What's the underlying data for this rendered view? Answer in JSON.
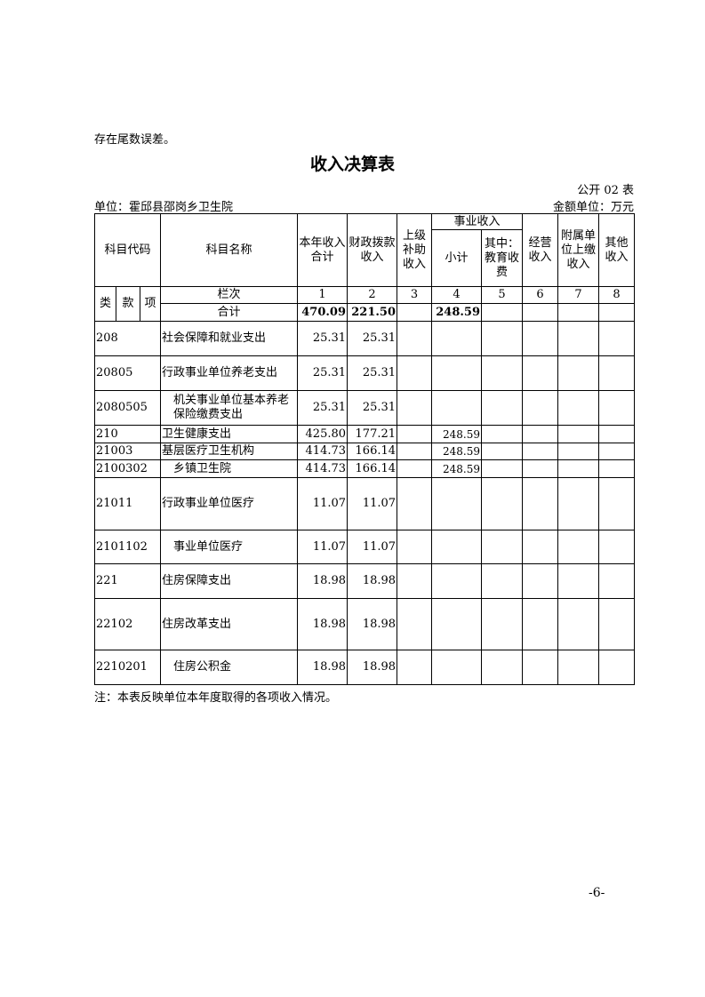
{
  "note_top": "存在尾数误差。",
  "title": "收入决算表",
  "form_no": "公开 02 表",
  "unit": "单位：霍邱县邵岗乡卫生院",
  "amount_unit": "金额单位：万元",
  "header": {
    "code": "科目代码",
    "name": "科目名称",
    "total": "本年收入合计",
    "fiscal": "财政拨款收入",
    "superior": "上级补助收入",
    "business": "事业收入",
    "subtotal": "小计",
    "education": "其中：教育收费",
    "operating": "经营收入",
    "affiliated": "附属单位上缴收入",
    "other": "其他收入",
    "lei": "类",
    "kuan": "款",
    "xiang": "项",
    "column_index": "栏次",
    "nums": [
      "1",
      "2",
      "3",
      "4",
      "5",
      "6",
      "7",
      "8"
    ]
  },
  "sum_row": {
    "label": "合计",
    "values": [
      "470.09",
      "221.50",
      "",
      "248.59",
      "",
      "",
      "",
      ""
    ]
  },
  "rows": [
    {
      "code": "208",
      "name": "社会保障和就业支出",
      "values": [
        "25.31",
        "25.31",
        "",
        "",
        "",
        "",
        "",
        ""
      ]
    },
    {
      "code": "20805",
      "name": "行政事业单位养老支出",
      "values": [
        "25.31",
        "25.31",
        "",
        "",
        "",
        "",
        "",
        ""
      ]
    },
    {
      "code": "2080505",
      "name": "机关事业单位基本养老保险缴费支出",
      "values": [
        "25.31",
        "25.31",
        "",
        "",
        "",
        "",
        "",
        ""
      ]
    },
    {
      "code": "210",
      "name": "卫生健康支出",
      "values": [
        "425.80",
        "177.21",
        "",
        "248.59",
        "",
        "",
        "",
        ""
      ]
    },
    {
      "code": "21003",
      "name": "基层医疗卫生机构",
      "values": [
        "414.73",
        "166.14",
        "",
        "248.59",
        "",
        "",
        "",
        ""
      ]
    },
    {
      "code": "2100302",
      "name": "乡镇卫生院",
      "values": [
        "414.73",
        "166.14",
        "",
        "248.59",
        "",
        "",
        "",
        ""
      ]
    },
    {
      "code": "21011",
      "name": "行政事业单位医疗",
      "values": [
        "11.07",
        "11.07",
        "",
        "",
        "",
        "",
        "",
        ""
      ]
    },
    {
      "code": "2101102",
      "name": "事业单位医疗",
      "values": [
        "11.07",
        "11.07",
        "",
        "",
        "",
        "",
        "",
        ""
      ]
    },
    {
      "code": "221",
      "name": "住房保障支出",
      "values": [
        "18.98",
        "18.98",
        "",
        "",
        "",
        "",
        "",
        ""
      ]
    },
    {
      "code": "22102",
      "name": "住房改革支出",
      "values": [
        "18.98",
        "18.98",
        "",
        "",
        "",
        "",
        "",
        ""
      ]
    },
    {
      "code": "2210201",
      "name": "住房公积金",
      "values": [
        "18.98",
        "18.98",
        "",
        "",
        "",
        "",
        "",
        ""
      ]
    }
  ],
  "note_bottom": "注：本表反映单位本年度取得的各项收入情况。",
  "page_no": "-6-"
}
